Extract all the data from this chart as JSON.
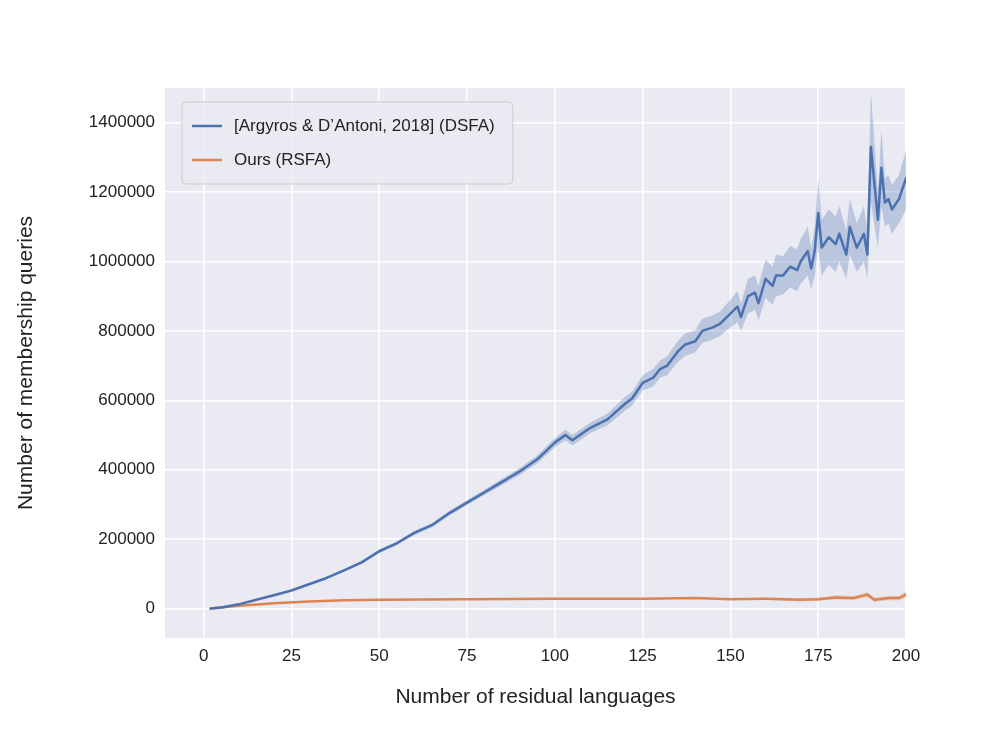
{
  "chart_data": {
    "type": "line",
    "xlabel": "Number of residual languages",
    "ylabel": "Number of membership queries",
    "xlim": [
      -11,
      200
    ],
    "ylim": [
      -85000,
      1500000
    ],
    "xticks": [
      0,
      25,
      50,
      75,
      100,
      125,
      150,
      175,
      200
    ],
    "yticks": [
      0,
      200000,
      400000,
      600000,
      800000,
      1000000,
      1200000,
      1400000
    ],
    "grid": true,
    "legend": "top left",
    "line_style": "solid",
    "marker": "none",
    "series": [
      {
        "name": "[Argyros & D’Antoni, 2018] (DSFA)",
        "color": "#4c72b0",
        "x": [
          2,
          5,
          10,
          15,
          20,
          25,
          30,
          35,
          40,
          45,
          50,
          55,
          60,
          65,
          70,
          75,
          80,
          85,
          90,
          95,
          100,
          103,
          105,
          110,
          115,
          120,
          122,
          125,
          128,
          130,
          132,
          135,
          137,
          140,
          142,
          145,
          147,
          150,
          152,
          153,
          155,
          157,
          158,
          160,
          162,
          163,
          165,
          167,
          169,
          170,
          172,
          173,
          174,
          175,
          176,
          178,
          180,
          181,
          183,
          184,
          186,
          188,
          189,
          190,
          192,
          193,
          194,
          195,
          196,
          198,
          200
        ],
        "values": [
          0,
          3000,
          12000,
          25000,
          38000,
          52000,
          70000,
          88000,
          110000,
          133000,
          165000,
          188000,
          218000,
          240000,
          275000,
          305000,
          335000,
          365000,
          395000,
          430000,
          478000,
          500000,
          485000,
          520000,
          545000,
          590000,
          605000,
          650000,
          665000,
          690000,
          700000,
          740000,
          760000,
          770000,
          800000,
          810000,
          820000,
          850000,
          870000,
          840000,
          900000,
          910000,
          880000,
          950000,
          930000,
          960000,
          960000,
          985000,
          975000,
          1000000,
          1030000,
          980000,
          1030000,
          1140000,
          1040000,
          1070000,
          1050000,
          1080000,
          1020000,
          1100000,
          1040000,
          1080000,
          1020000,
          1330000,
          1120000,
          1270000,
          1170000,
          1180000,
          1150000,
          1180000,
          1240000
        ],
        "lower": [
          0,
          2000,
          10000,
          23000,
          36000,
          50000,
          67000,
          85000,
          106000,
          129000,
          160000,
          183000,
          212000,
          234000,
          268000,
          298000,
          327000,
          356000,
          385000,
          418000,
          465000,
          485000,
          470000,
          505000,
          528000,
          570000,
          585000,
          628000,
          640000,
          665000,
          672000,
          710000,
          728000,
          738000,
          765000,
          775000,
          785000,
          810000,
          825000,
          800000,
          850000,
          860000,
          830000,
          895000,
          875000,
          900000,
          905000,
          925000,
          915000,
          935000,
          960000,
          920000,
          960000,
          1040000,
          960000,
          990000,
          970000,
          1000000,
          950000,
          1020000,
          970000,
          1000000,
          950000,
          1170000,
          1040000,
          1160000,
          1100000,
          1110000,
          1080000,
          1110000,
          1150000
        ],
        "upper": [
          0,
          4000,
          14000,
          27000,
          40000,
          54000,
          73000,
          91000,
          114000,
          137000,
          170000,
          193000,
          224000,
          246000,
          282000,
          312000,
          343000,
          374000,
          405000,
          442000,
          491000,
          515000,
          500000,
          535000,
          562000,
          610000,
          625000,
          672000,
          690000,
          715000,
          728000,
          770000,
          792000,
          802000,
          835000,
          845000,
          855000,
          890000,
          915000,
          880000,
          950000,
          960000,
          930000,
          1005000,
          985000,
          1020000,
          1015000,
          1045000,
          1035000,
          1065000,
          1100000,
          1040000,
          1100000,
          1240000,
          1120000,
          1150000,
          1130000,
          1160000,
          1090000,
          1180000,
          1110000,
          1160000,
          1090000,
          1490000,
          1200000,
          1380000,
          1240000,
          1250000,
          1220000,
          1250000,
          1320000
        ]
      },
      {
        "name": "Ours (RSFA)",
        "color": "#dd8452",
        "x": [
          2,
          10,
          20,
          30,
          40,
          50,
          75,
          100,
          125,
          140,
          150,
          160,
          170,
          175,
          180,
          185,
          189,
          191,
          195,
          198,
          200
        ],
        "values": [
          0,
          8000,
          15000,
          20000,
          24000,
          25000,
          27000,
          28000,
          28000,
          30000,
          27000,
          28000,
          25000,
          27000,
          32000,
          30000,
          40000,
          25000,
          30000,
          30000,
          40000
        ],
        "lower": [
          0,
          7000,
          14000,
          19000,
          23000,
          24000,
          26000,
          27000,
          27000,
          28000,
          25000,
          25000,
          20000,
          22000,
          26000,
          24000,
          33000,
          19000,
          24000,
          23000,
          32000
        ],
        "upper": [
          0,
          9000,
          16000,
          21000,
          25000,
          26000,
          28000,
          29000,
          29000,
          32000,
          29000,
          31000,
          30000,
          32000,
          38000,
          36000,
          47000,
          31000,
          36000,
          37000,
          50000
        ]
      }
    ]
  }
}
